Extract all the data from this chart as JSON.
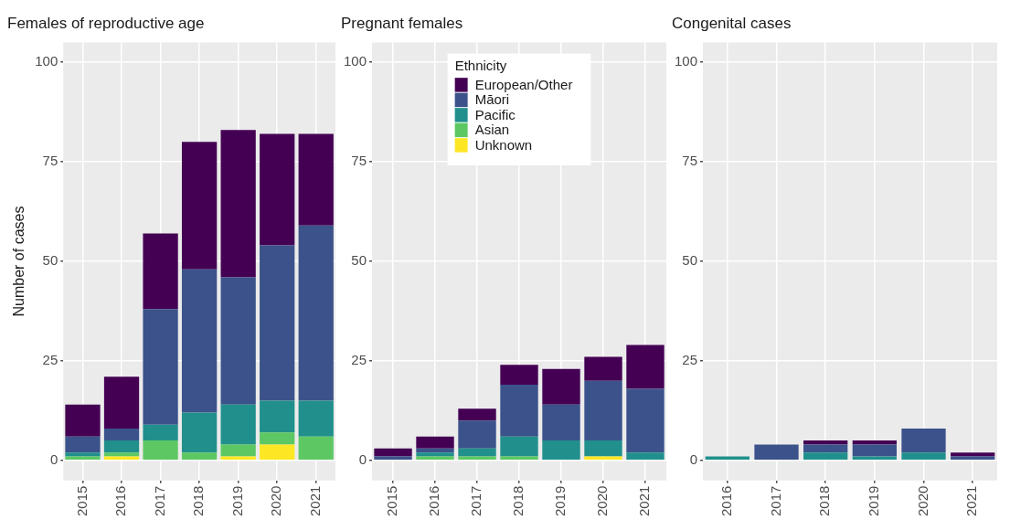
{
  "chart_data": [
    {
      "type": "bar",
      "title": "Females of reproductive age",
      "ylabel": "Number of cases",
      "stacked": true,
      "categories": [
        "2015",
        "2016",
        "2017",
        "2018",
        "2019",
        "2020",
        "2021"
      ],
      "ylim": [
        -5,
        105
      ],
      "yticks": [
        0,
        25,
        50,
        75,
        100
      ],
      "grid": true,
      "legend": false,
      "series": [
        {
          "color": "#fde725",
          "values": [
            0,
            1,
            0,
            0,
            1,
            4,
            0
          ]
        },
        {
          "color": "#5dc863",
          "values": [
            1,
            1,
            5,
            2,
            3,
            3,
            6
          ]
        },
        {
          "color": "#21908c",
          "values": [
            1,
            3,
            4,
            10,
            10,
            8,
            9
          ]
        },
        {
          "color": "#3b528b",
          "values": [
            4,
            3,
            29,
            36,
            32,
            39,
            44
          ]
        },
        {
          "color": "#440154",
          "values": [
            8,
            13,
            19,
            32,
            37,
            28,
            23
          ]
        }
      ]
    },
    {
      "type": "bar",
      "title": "Pregnant females",
      "legend_title": "Ethnicity",
      "stacked": true,
      "categories": [
        "2015",
        "2016",
        "2017",
        "2018",
        "2019",
        "2020",
        "2021"
      ],
      "ylim": [
        -5,
        105
      ],
      "yticks": [
        0,
        25,
        50,
        75,
        100
      ],
      "grid": true,
      "legend": "top",
      "series": [
        {
          "name": "Unknown",
          "color": "#fde725",
          "values": [
            0,
            0,
            0,
            0,
            0,
            1,
            0
          ]
        },
        {
          "name": "Asian",
          "color": "#5dc863",
          "values": [
            0,
            1,
            1,
            1,
            0,
            0,
            0
          ]
        },
        {
          "name": "Pacific",
          "color": "#21908c",
          "values": [
            0,
            1,
            2,
            5,
            5,
            4,
            2
          ]
        },
        {
          "name": "Māori",
          "color": "#3b528b",
          "values": [
            1,
            1,
            7,
            13,
            9,
            15,
            16
          ]
        },
        {
          "name": "European/Other",
          "color": "#440154",
          "values": [
            2,
            3,
            3,
            5,
            9,
            6,
            11
          ]
        }
      ]
    },
    {
      "type": "bar",
      "title": "Congenital cases",
      "stacked": true,
      "categories": [
        "2016",
        "2017",
        "2018",
        "2019",
        "2020",
        "2021"
      ],
      "ylim": [
        -5,
        105
      ],
      "yticks": [
        0,
        25,
        50,
        75,
        100
      ],
      "grid": true,
      "legend": false,
      "series": [
        {
          "color": "#21908c",
          "values": [
            1,
            0,
            2,
            1,
            2,
            0
          ]
        },
        {
          "color": "#3b528b",
          "values": [
            0,
            4,
            2,
            3,
            6,
            1
          ]
        },
        {
          "color": "#440154",
          "values": [
            0,
            0,
            1,
            1,
            0,
            1
          ]
        }
      ]
    }
  ]
}
